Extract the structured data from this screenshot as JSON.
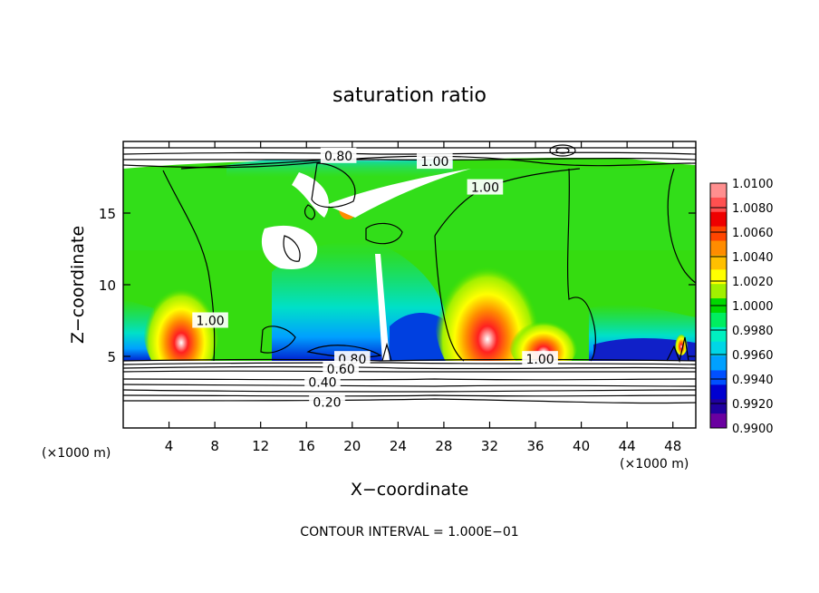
{
  "chart_data": {
    "type": "heatmap",
    "title": "saturation ratio",
    "xlabel": "X−coordinate",
    "ylabel": "Z−coordinate",
    "x_unit_left": "(×1000 m)",
    "x_unit_right": "(×1000 m)",
    "xlim": [
      0,
      50
    ],
    "ylim": [
      0,
      20
    ],
    "x_ticks": [
      4,
      8,
      12,
      16,
      20,
      24,
      28,
      32,
      36,
      40,
      44,
      48
    ],
    "y_ticks": [
      5,
      10,
      15
    ],
    "footer": "CONTOUR INTERVAL = 1.000E−01",
    "colorbar": {
      "labels": [
        "1.0100",
        "1.0080",
        "1.0060",
        "1.0040",
        "1.0020",
        "1.0000",
        "0.9980",
        "0.9960",
        "0.9940",
        "0.9920",
        "0.9900"
      ],
      "colors": [
        "#ff8f8f",
        "#ff5050",
        "#ee0000",
        "#ff4500",
        "#ff8c00",
        "#ffc000",
        "#ffff00",
        "#a0f000",
        "#00d800",
        "#00ee60",
        "#00f0c0",
        "#00d6e6",
        "#00a0ff",
        "#0050ff",
        "#0000d0",
        "#2000a0",
        "#6a00a0"
      ],
      "range": [
        0.99,
        1.01
      ]
    },
    "contour_labels": [
      {
        "text": "0.80",
        "x": 18.8,
        "y": 19.0
      },
      {
        "text": "1.00",
        "x": 27.2,
        "y": 18.6
      },
      {
        "text": "1.00",
        "x": 31.6,
        "y": 16.8
      },
      {
        "text": "1.00",
        "x": 7.6,
        "y": 7.5
      },
      {
        "text": "1.00",
        "x": 36.4,
        "y": 4.8
      },
      {
        "text": "0.80",
        "x": 20.0,
        "y": 4.8
      },
      {
        "text": "0.60",
        "x": 19.0,
        "y": 4.1
      },
      {
        "text": "0.40",
        "x": 17.4,
        "y": 3.2
      },
      {
        "text": "0.20",
        "x": 17.8,
        "y": 1.8
      }
    ]
  }
}
